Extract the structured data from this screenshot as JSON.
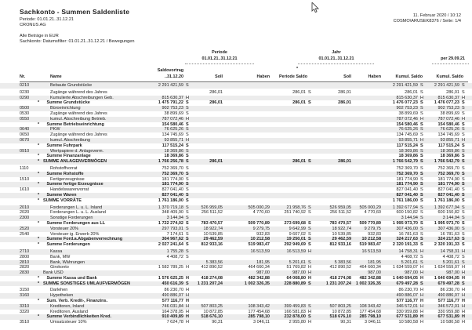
{
  "report": {
    "title": "Sachkonto - Summen Saldenliste",
    "period_line": "Periode: 01.01.21..31.12.21",
    "company": "CRONUS AG",
    "currency_note": "Alle Beträge in EUR",
    "filter_note": "Sachkonto: Datumsfilter: 01.01.21..31.12.21 / Bewegungen",
    "print_date": "11. Februar 2020 / 10:12",
    "user_page": "COSMO\\ARUSEK8376 / Seite: 1/4"
  },
  "table": {
    "band_headers": {
      "periode_label": "Periode",
      "periode_range": "01.01.21..31.12.21",
      "jahr_label": "Jahr",
      "jahr_range": "01.01.21..31.12.21",
      "per_label": "per 29.09.21",
      "footnote_marker": "*"
    },
    "columns": {
      "nr": "Nr.",
      "name": "Name",
      "saldovortrag_label": "Saldovortrag",
      "saldovortrag_sub": "..31.12.20",
      "soll": "Soll",
      "haben": "Haben",
      "periode_saldo": "Periode Saldo",
      "kumul_saldo": "Kumul. Saldo"
    },
    "rows": [
      {
        "nr": "0210",
        "name": "Bebaute Grundstücke",
        "ind": 2,
        "sv": "2 291 421,59",
        "svsh": "S",
        "k": "2 291 421,59",
        "ksh": "S",
        "k2": "2 291 421,59",
        "k2sh": "S"
      },
      {
        "nr": "0230",
        "name": "Zugänge während des Jahres",
        "ind": 2,
        "gap": true,
        "ps": "286,01",
        "psal": "286,01",
        "psalsh": "S",
        "js": "286,01",
        "k": "286,01",
        "ksh": "S",
        "k2": "286,01",
        "k2sh": "S"
      },
      {
        "nr": "0290",
        "name": "Kumulierte Abschreibungen Geb.",
        "ind": 2,
        "sv": "815 630,37",
        "svsh": "H",
        "k": "815 630,37",
        "ksh": "H",
        "k2": "815 630,37",
        "k2sh": "H"
      },
      {
        "star": true,
        "bold": true,
        "name": "Summe Grundstücke",
        "ind": 1,
        "sv": "1 475 791,22",
        "svsh": "S",
        "ps": "286,01",
        "psal": "286,01",
        "psalsh": "S",
        "js": "286,01",
        "k": "1 476 077,23",
        "ksh": "S",
        "k2": "1 476 077,23",
        "k2sh": "S"
      },
      {
        "nr": "0500",
        "name": "Büroeinrichtung",
        "ind": 2,
        "sv": "902 753,23",
        "svsh": "S",
        "k": "902 753,23",
        "ksh": "S",
        "k2": "902 753,23",
        "k2sh": "S"
      },
      {
        "nr": "0530",
        "name": "Zugänge während des Jahres",
        "ind": 2,
        "sv": "38 899,69",
        "svsh": "S",
        "k": "38 899,69",
        "ksh": "S",
        "k2": "38 899,69",
        "k2sh": "S"
      },
      {
        "nr": "0550",
        "name": "kumul. Abschreibung Betrieb.",
        "ind": 2,
        "sv": "787 072,46",
        "svsh": "H",
        "k": "787 072,46",
        "ksh": "H",
        "k2": "787 072,46",
        "k2sh": "H"
      },
      {
        "star": true,
        "bold": true,
        "name": "Summe Betriebseinrichtung",
        "ind": 1,
        "sv": "154 580,46",
        "svsh": "S",
        "k": "154 580,46",
        "ksh": "S",
        "k2": "154 580,46",
        "k2sh": "S"
      },
      {
        "nr": "0640",
        "name": "PKW",
        "ind": 2,
        "sv": "76 625,26",
        "svsh": "S",
        "k": "76 625,26",
        "ksh": "S",
        "k2": "76 625,26",
        "k2sh": "S"
      },
      {
        "nr": "0650",
        "name": "Zugänge während des Jahres",
        "ind": 2,
        "sv": "134 745,69",
        "svsh": "S",
        "k": "134 745,69",
        "ksh": "S",
        "k2": "134 745,69",
        "k2sh": "S"
      },
      {
        "nr": "0670",
        "name": "kumul. Abschreibung",
        "ind": 2,
        "sv": "93 855,71",
        "svsh": "H",
        "k": "93 855,71",
        "ksh": "H",
        "k2": "93 855,71",
        "k2sh": "H"
      },
      {
        "star": true,
        "bold": true,
        "name": "Summe Fuhrpark",
        "ind": 1,
        "sv": "117 515,24",
        "svsh": "S",
        "k": "117 515,24",
        "ksh": "S",
        "k2": "117 515,24",
        "k2sh": "S"
      },
      {
        "nr": "0910",
        "name": "Wertpapiere d. Anlageverm.",
        "ind": 2,
        "sv": "18 369,86",
        "svsh": "S",
        "k": "18 369,86",
        "ksh": "S",
        "k2": "18 369,86",
        "k2sh": "S"
      },
      {
        "star": true,
        "bold": true,
        "name": "Summe Finanzanlage",
        "ind": 1,
        "sv": "18 369,86",
        "svsh": "S",
        "k": "18 369,86",
        "ksh": "S",
        "k2": "18 369,86",
        "k2sh": "S"
      },
      {
        "star": true,
        "bold": true,
        "name": "SUMME ANLAGENVERMÖGEN",
        "ind": 0,
        "sv": "1 766 256,78",
        "svsh": "S",
        "ps": "286,01",
        "psal": "286,01",
        "psalsh": "S",
        "js": "286,01",
        "k": "1 766 542,79",
        "ksh": "S",
        "k2": "1 766 542,79",
        "k2sh": "S"
      },
      {
        "nr": "1110",
        "name": "Rohstoffvorrat",
        "ind": 2,
        "gap": true,
        "sv": "752 369,70",
        "svsh": "S",
        "k": "752 369,70",
        "ksh": "S",
        "k2": "752 369,70",
        "k2sh": "S"
      },
      {
        "star": true,
        "bold": true,
        "name": "Summe Rohstoffe",
        "ind": 1,
        "sv": "752 369,70",
        "svsh": "S",
        "k": "752 369,70",
        "ksh": "S",
        "k2": "752 369,70",
        "k2sh": "S"
      },
      {
        "nr": "1510",
        "name": "Fertigerzeugnisse",
        "ind": 2,
        "sv": "181 774,90",
        "svsh": "S",
        "k": "181 774,90",
        "ksh": "S",
        "k2": "181 774,90",
        "k2sh": "S"
      },
      {
        "star": true,
        "bold": true,
        "name": "Summe fertige Erzeugnisse",
        "ind": 1,
        "sv": "181 774,90",
        "svsh": "S",
        "k": "181 774,90",
        "ksh": "S",
        "k2": "181 774,90",
        "k2sh": "S"
      },
      {
        "nr": "1610",
        "name": "Handelswarenvorrat",
        "ind": 2,
        "sv": "827 041,40",
        "svsh": "S",
        "k": "827 041,40",
        "ksh": "S",
        "k2": "827 041,40",
        "k2sh": "S"
      },
      {
        "star": true,
        "bold": true,
        "name": "Summe Waren",
        "ind": 1,
        "sv": "827 041,40",
        "svsh": "S",
        "k": "827 041,40",
        "ksh": "S",
        "k2": "827 041,40",
        "k2sh": "S"
      },
      {
        "star": true,
        "bold": true,
        "name": "SUMME VORRÄTE",
        "ind": 0,
        "sv": "1 761 186,00",
        "svsh": "S",
        "k": "1 761 186,00",
        "ksh": "S",
        "k2": "1 761 186,00",
        "k2sh": "S"
      },
      {
        "nr": "2010",
        "name": "Forderungen L. u. L. Inland",
        "ind": 2,
        "gap": true,
        "sv": "1 370 719,18",
        "svsh": "S",
        "ps": "526 959,05",
        "ph": "505 000,29",
        "psal": "21 958,76",
        "psalsh": "S",
        "js": "526 959,05",
        "jh": "505 000,29",
        "k": "1 392 677,94",
        "ksh": "S",
        "k2": "1 392 677,94",
        "k2sh": "S"
      },
      {
        "nr": "2020",
        "name": "Forderungen L. u. L. Ausland",
        "ind": 2,
        "sv": "348 409,90",
        "svsh": "S",
        "ps": "256 511,52",
        "ph": "4 770,60",
        "psal": "251 740,92",
        "psalsh": "S",
        "js": "256 511,52",
        "jh": "4 770,60",
        "k": "600 150,82",
        "ksh": "S",
        "k2": "600 150,82",
        "k2sh": "S"
      },
      {
        "nr": "2300",
        "name": "Sonstige Forderungen",
        "ind": 2,
        "sv": "3 144,94",
        "svsh": "S",
        "k": "3 144,94",
        "ksh": "S",
        "k2": "3 144,94",
        "k2sh": "S"
      },
      {
        "star": true,
        "bold": true,
        "name": "Summe Forderungen aus LL",
        "ind": 1,
        "sv": "1 722 274,02",
        "svsh": "S",
        "ps": "783 470,57",
        "ph": "509 770,89",
        "psal": "273 699,68",
        "psalsh": "S",
        "js": "783 470,57",
        "jh": "509 770,89",
        "k": "1 995 973,70",
        "ksh": "S",
        "k2": "1 995 973,70",
        "k2sh": "S"
      },
      {
        "nr": "2520",
        "name": "Vorsteuer 20%",
        "ind": 2,
        "sv": "297 793,01",
        "svsh": "S",
        "ps": "18 922,74",
        "ph": "9 279,75",
        "psal": "9 642,99",
        "psalsh": "S",
        "js": "18 922,74",
        "jh": "9 279,75",
        "k": "307 436,00",
        "ksh": "S",
        "k2": "307 436,00",
        "k2sh": "S"
      },
      {
        "nr": "2540",
        "name": "Vorsteuer ig. Erwerb 20%",
        "ind": 2,
        "sv": "7 174,61",
        "svsh": "S",
        "ps": "10 539,85",
        "ph": "932,83",
        "psal": "9 607,02",
        "psalsh": "S",
        "js": "10 539,85",
        "jh": "932,83",
        "k": "16 781,63",
        "ksh": "S",
        "k2": "16 781,63",
        "k2sh": "S"
      },
      {
        "star": true,
        "bold": true,
        "name": "Summe Ford.a.Abgabenverrechnung",
        "ind": 1,
        "sv": "304 967,62",
        "svsh": "S",
        "ps": "29 462,59",
        "ph": "10 212,58",
        "psal": "19 250,01",
        "psalsh": "S",
        "js": "29 462,59",
        "jh": "10 212,58",
        "k": "324 217,63",
        "ksh": "S",
        "k2": "324 217,63",
        "k2sh": "S"
      },
      {
        "star": true,
        "bold": true,
        "name": "Summe Forderungen",
        "ind": 1,
        "sv": "2 027 241,64",
        "svsh": "S",
        "ps": "812 933,16",
        "ph": "519 983,47",
        "psal": "292 949,69",
        "psalsh": "S",
        "js": "812 933,16",
        "jh": "519 983,47",
        "k": "2 320 191,33",
        "ksh": "S",
        "k2": "2 320 191,33",
        "k2sh": "S"
      },
      {
        "nr": "2710",
        "name": "Kassa",
        "ind": 2,
        "gap": true,
        "sv": "1 755,28",
        "svsh": "S",
        "ph": "16 513,59",
        "psal": "16 513,59",
        "psalsh": "H",
        "jh": "16 513,59",
        "k": "14 758,31",
        "ksh": "H",
        "k2": "14 758,31",
        "k2sh": "H"
      },
      {
        "nr": "2800",
        "name": "Bank, MW",
        "ind": 2,
        "sv": "4 408,72",
        "svsh": "S",
        "k": "4 408,72",
        "ksh": "S",
        "k2": "4 408,72",
        "k2sh": "S"
      },
      {
        "nr": "2810",
        "name": "Bank, Währungen",
        "ind": 2,
        "ps": "5 383,56",
        "ph": "181,95",
        "psal": "5 201,61",
        "psalsh": "S",
        "js": "5 383,56",
        "jh": "181,95",
        "k": "5 201,61",
        "ksh": "S",
        "k2": "5 201,61",
        "k2sh": "S"
      },
      {
        "nr": "2820",
        "name": "Girokonto",
        "ind": 2,
        "sv": "1 582 789,25",
        "svsh": "H",
        "ps": "412 890,52",
        "ph": "464 660,34",
        "psal": "51 769,82",
        "psalsh": "H",
        "js": "412 890,52",
        "jh": "464 660,34",
        "k": "1 634 559,07",
        "ksh": "H",
        "k2": "1 634 559,07",
        "k2sh": "H"
      },
      {
        "nr": "2830",
        "name": "Bank USD",
        "ind": 0,
        "ph": "987,00",
        "psal": "987,00",
        "psalsh": "H",
        "jh": "987,00",
        "k": "987,00",
        "ksh": "H",
        "k2": "987,00",
        "k2sh": "H"
      },
      {
        "star": true,
        "bold": true,
        "name": "Summe Kassa und Bank",
        "ind": 1,
        "sv": "1 576 625,25",
        "svsh": "H",
        "ps": "418 274,08",
        "ph": "482 342,88",
        "psal": "64 068,80",
        "psalsh": "H",
        "js": "418 274,08",
        "jh": "482 342,88",
        "k": "1 640 694,05",
        "ksh": "H",
        "k2": "1 640 694,05",
        "k2sh": "H"
      },
      {
        "star": true,
        "bold": true,
        "name": "SUMME SONSTIGES UMLAUFVERMÖGEN",
        "ind": 0,
        "sv": "450 616,39",
        "svsh": "S",
        "ps": "1 231 207,24",
        "ph": "1 002 326,35",
        "psal": "228 880,89",
        "psalsh": "S",
        "js": "1 231 207,24",
        "jh": "1 002 326,35",
        "k": "679 497,28",
        "ksh": "S",
        "k2": "679 497,28",
        "k2sh": "S"
      },
      {
        "nr": "3150",
        "name": "Darlehen",
        "ind": 2,
        "gap": true,
        "sv": "86 230,70",
        "svsh": "H",
        "k": "86 230,70",
        "ksh": "H",
        "k2": "86 230,70",
        "k2sh": "H"
      },
      {
        "nr": "3160",
        "name": "Hypotheken",
        "ind": 2,
        "sv": "490 886,07",
        "svsh": "H",
        "k": "490 886,07",
        "ksh": "H",
        "k2": "490 886,07",
        "k2sh": "H"
      },
      {
        "star": true,
        "bold": true,
        "name": "Sum. Verb. Kredit-, Finanzins.",
        "ind": 1,
        "sv": "577 116,77",
        "svsh": "H",
        "k": "577 116,77",
        "ksh": "H",
        "k2": "577 116,77",
        "k2sh": "H"
      },
      {
        "nr": "3310",
        "name": "Kreditoren, Inland",
        "ind": 2,
        "sv": "746 031,84",
        "svsh": "H",
        "ps": "507 803,25",
        "ph": "108 343,42",
        "psal": "399 459,83",
        "psalsh": "S",
        "js": "507 803,25",
        "jh": "108 343,42",
        "k": "346 572,01",
        "ksh": "H",
        "k2": "346 572,01",
        "k2sh": "H"
      },
      {
        "nr": "3320",
        "name": "Kreditoren, Ausland",
        "ind": 2,
        "sv": "164 378,05",
        "svsh": "H",
        "ps": "10 872,85",
        "ph": "177 454,68",
        "psal": "166 581,83",
        "psalsh": "H",
        "js": "10 872,85",
        "jh": "177 454,68",
        "k": "330 959,88",
        "ksh": "H",
        "k2": "330 959,88",
        "k2sh": "H"
      },
      {
        "star": true,
        "bold": true,
        "name": "Summe Verbindlichkeiten Kred.",
        "ind": 1,
        "sv": "910 409,89",
        "svsh": "H",
        "ps": "518 676,10",
        "ph": "285 798,10",
        "psal": "232 878,00",
        "psalsh": "S",
        "js": "518 676,10",
        "jh": "285 798,10",
        "k": "677 531,89",
        "ksh": "H",
        "k2": "677 531,89",
        "k2sh": "H"
      },
      {
        "nr": "3510",
        "name": "Umsatzsteuer 10%",
        "ind": 2,
        "sv": "7 624,78",
        "svsh": "H",
        "ps": "90,31",
        "ph": "3 046,11",
        "psal": "2 955,80",
        "psalsh": "H",
        "js": "90,31",
        "jh": "3 046,11",
        "k": "10 580,58",
        "ksh": "H",
        "k2": "10 580,58",
        "k2sh": "H"
      }
    ]
  },
  "colors": {
    "stripe": "#ececec",
    "text": "#1c1c1c"
  }
}
